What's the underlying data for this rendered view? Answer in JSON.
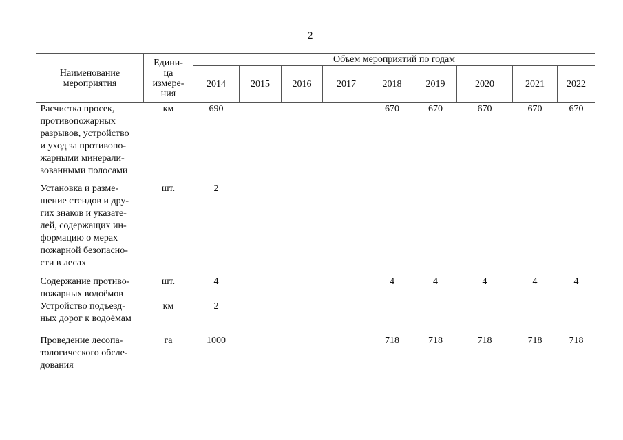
{
  "page_number": "2",
  "table": {
    "headers": {
      "name": [
        "Наименование",
        "мероприятия"
      ],
      "unit": [
        "Едини-",
        "ца",
        "измере-",
        "ния"
      ],
      "volume_group": "Объем мероприятий по годам",
      "years": [
        "2014",
        "2015",
        "2016",
        "2017",
        "2018",
        "2019",
        "2020",
        "2021",
        "2022"
      ]
    },
    "rows": [
      {
        "name_lines": [
          "Расчистка просек,",
          "противопожарных",
          "разрывов, устройство",
          "и уход за противопо-",
          "жарными минерали-",
          "зованными полосами"
        ],
        "unit": "км",
        "values": [
          "690",
          "",
          "",
          "",
          "670",
          "670",
          "670",
          "670",
          "670"
        ]
      },
      {
        "name_lines": [
          "Установка и разме-",
          "щение стендов и дру-",
          "гих знаков и указате-",
          "лей, содержащих ин-",
          "формацию о мерах",
          "пожарной безопасно-",
          "сти в лесах"
        ],
        "unit": "шт.",
        "values": [
          "2",
          "",
          "",
          "",
          "",
          "",
          "",
          "",
          ""
        ]
      },
      {
        "name_lines": [
          "Содержание противо-",
          "пожарных водоёмов"
        ],
        "unit": "шт.",
        "values": [
          "4",
          "",
          "",
          "",
          "4",
          "4",
          "4",
          "4",
          "4"
        ]
      },
      {
        "name_lines": [
          "Устройство подъезд-",
          "ных дорог к водоёмам"
        ],
        "unit": "км",
        "values": [
          "2",
          "",
          "",
          "",
          "",
          "",
          "",
          "",
          ""
        ]
      },
      {
        "name_lines": [
          "Проведение лесопа-",
          "тологического обсле-",
          "дования"
        ],
        "unit": "га",
        "values": [
          "1000",
          "",
          "",
          "",
          "718",
          "718",
          "718",
          "718",
          "718"
        ]
      }
    ]
  }
}
